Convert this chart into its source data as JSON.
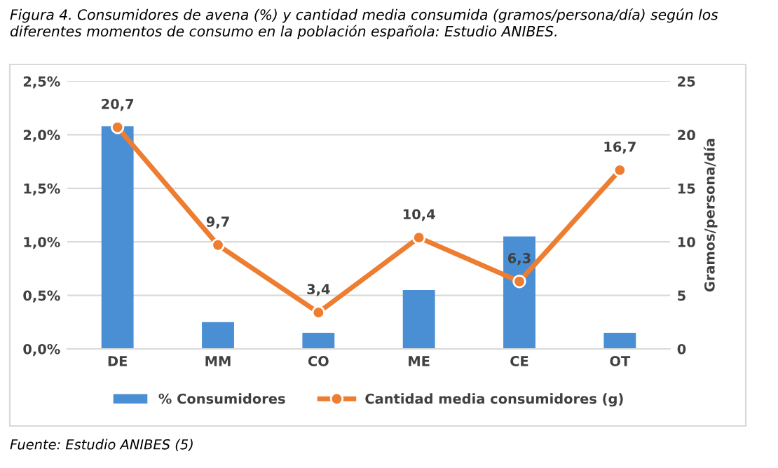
{
  "chart_data": {
    "type": "bar",
    "title": "Figura 4. Consumidores de avena (%) y cantidad media consumida (gramos/persona/día) según los diferentes momentos de consumo en la población española: Estudio ANIBES.",
    "categories": [
      "DE",
      "MM",
      "CO",
      "ME",
      "CE",
      "OT"
    ],
    "series": [
      {
        "name": "% Consumidores",
        "color": "#4a8fd4",
        "values": [
          2.08,
          0.25,
          0.15,
          0.55,
          1.05,
          0.15
        ]
      },
      {
        "name": "Cantidad media consumidores (g)",
        "type": "line",
        "axis": "y2",
        "color": "#ed7d31",
        "marker": "circle",
        "values": [
          20.7,
          9.7,
          3.4,
          10.4,
          6.3,
          16.7
        ],
        "value_labels": [
          "20,7",
          "9,7",
          "3,4",
          "10,4",
          "6,3",
          "16,7"
        ]
      }
    ],
    "ylim": [
      0,
      2.5
    ],
    "yticks": [
      {
        "value": 0,
        "label": "0,0%"
      },
      {
        "value": 0.5,
        "label": "0,5%"
      },
      {
        "value": 1.0,
        "label": "1,0%"
      },
      {
        "value": 1.5,
        "label": "1,5%"
      },
      {
        "value": 2.0,
        "label": "2,0%"
      },
      {
        "value": 2.5,
        "label": "2,5%"
      }
    ],
    "y2lim": [
      0,
      25
    ],
    "y2ticks": [
      0,
      5,
      10,
      15,
      20,
      25
    ],
    "y2label": "Gramos/persona/día",
    "grid": "y",
    "legend": "bottom",
    "annotations": [
      "Fuente: Estudio ANIBES (5)"
    ]
  }
}
